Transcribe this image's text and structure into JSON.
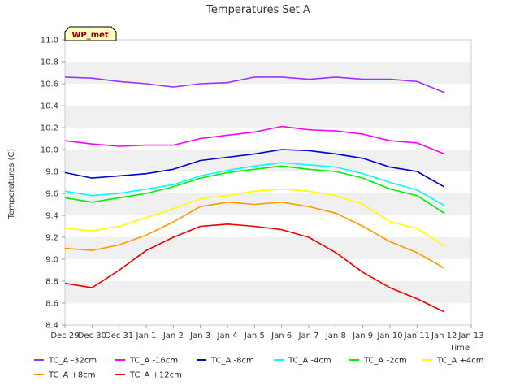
{
  "chart_data": {
    "type": "line",
    "title": "Temperatures Set A",
    "xlabel": "Time",
    "ylabel": "Temperatures (C)",
    "badge": "WP_met",
    "ylim": [
      8.4,
      11.0
    ],
    "yticks": [
      "8.4",
      "8.6",
      "8.8",
      "9.0",
      "9.2",
      "9.4",
      "9.6",
      "9.8",
      "10.0",
      "10.2",
      "10.4",
      "10.6",
      "10.8",
      "11.0"
    ],
    "xlim": [
      "Dec 29",
      "Jan 13"
    ],
    "xticks": [
      "Dec 29",
      "Dec 30",
      "Dec 31",
      "Jan 1",
      "Jan 2",
      "Jan 3",
      "Jan 4",
      "Jan 5",
      "Jan 6",
      "Jan 7",
      "Jan 8",
      "Jan 9",
      "Jan 10",
      "Jan 11",
      "Jan 12",
      "Jan 13"
    ],
    "x": [
      "Dec 29",
      "Dec 30",
      "Dec 31",
      "Jan 1",
      "Jan 2",
      "Jan 3",
      "Jan 4",
      "Jan 5",
      "Jan 6",
      "Jan 7",
      "Jan 8",
      "Jan 9",
      "Jan 10",
      "Jan 11",
      "Jan 12"
    ],
    "grid": "horizontal bands",
    "legend_position": "bottom",
    "series": [
      {
        "name": "TC_A -32cm",
        "color": "#9933ff",
        "values": [
          10.66,
          10.65,
          10.62,
          10.6,
          10.57,
          10.6,
          10.61,
          10.66,
          10.66,
          10.64,
          10.66,
          10.64,
          10.64,
          10.62,
          10.52
        ]
      },
      {
        "name": "TC_A -16cm",
        "color": "#ff00ff",
        "values": [
          10.08,
          10.05,
          10.03,
          10.04,
          10.04,
          10.1,
          10.13,
          10.16,
          10.21,
          10.18,
          10.17,
          10.14,
          10.08,
          10.06,
          9.96
        ]
      },
      {
        "name": "TC_A -8cm",
        "color": "#0000cc",
        "values": [
          9.79,
          9.74,
          9.76,
          9.78,
          9.82,
          9.9,
          9.93,
          9.96,
          10.0,
          9.99,
          9.96,
          9.92,
          9.84,
          9.8,
          9.66
        ]
      },
      {
        "name": "TC_A -4cm",
        "color": "#00ffff",
        "values": [
          9.62,
          9.58,
          9.6,
          9.64,
          9.68,
          9.76,
          9.81,
          9.85,
          9.88,
          9.86,
          9.84,
          9.78,
          9.7,
          9.63,
          9.49
        ]
      },
      {
        "name": "TC_A -2cm",
        "color": "#00ee00",
        "values": [
          9.56,
          9.52,
          9.56,
          9.6,
          9.66,
          9.74,
          9.79,
          9.82,
          9.85,
          9.82,
          9.8,
          9.74,
          9.64,
          9.58,
          9.42
        ]
      },
      {
        "name": "TC_A +4cm",
        "color": "#ffff00",
        "values": [
          9.28,
          9.26,
          9.3,
          9.38,
          9.46,
          9.55,
          9.58,
          9.62,
          9.64,
          9.62,
          9.58,
          9.5,
          9.34,
          9.28,
          9.12
        ]
      },
      {
        "name": "TC_A +8cm",
        "color": "#ff9900",
        "values": [
          9.1,
          9.08,
          9.13,
          9.22,
          9.34,
          9.48,
          9.52,
          9.5,
          9.52,
          9.48,
          9.42,
          9.3,
          9.16,
          9.06,
          8.92
        ]
      },
      {
        "name": "TC_A +12cm",
        "color": "#ee0000",
        "values": [
          8.78,
          8.74,
          8.9,
          9.08,
          9.2,
          9.3,
          9.32,
          9.3,
          9.27,
          9.2,
          9.06,
          8.88,
          8.74,
          8.64,
          8.52
        ]
      }
    ]
  }
}
